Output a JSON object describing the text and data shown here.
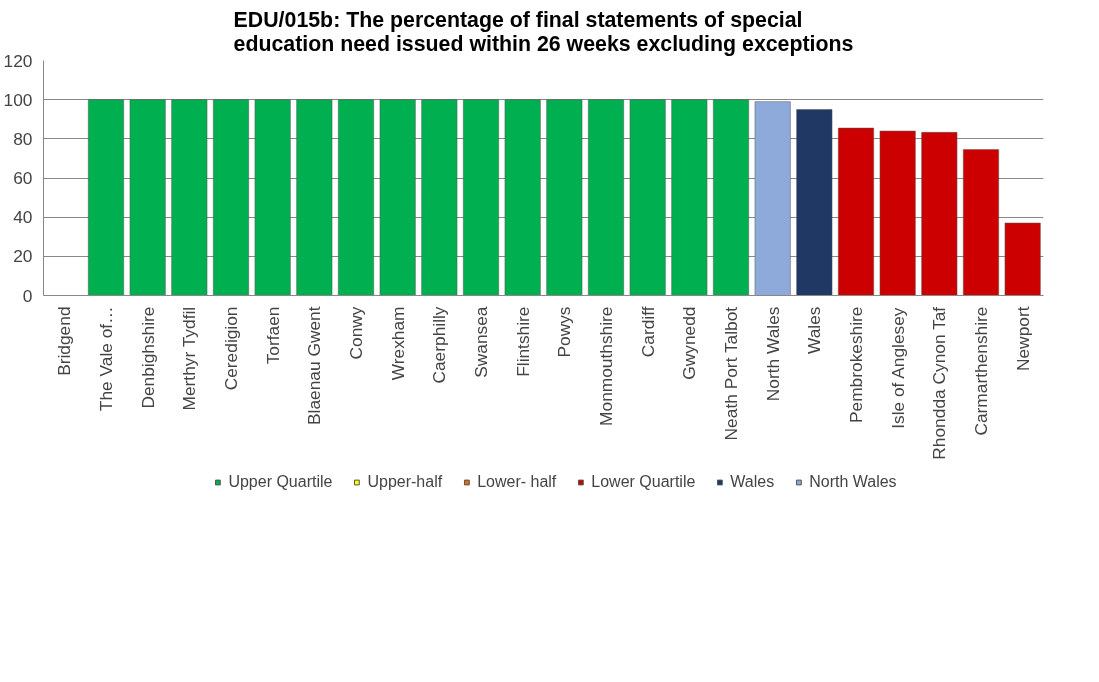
{
  "chart_data": {
    "type": "bar",
    "title": "EDU/015b: The percentage of final statements of special\neducation need issued within 26 weeks excluding exceptions",
    "categories": [
      "Bridgend",
      "The Vale of…",
      "Denbighshire",
      "Merthyr Tydfil",
      "Ceredigion",
      "Torfaen",
      "Blaenau Gwent",
      "Conwy",
      "Wrexham",
      "Caerphilly",
      "Swansea",
      "Flintshire",
      "Powys",
      "Monmouthshire",
      "Cardiff",
      "Gwynedd",
      "Neath Port Talbot",
      "North Wales",
      "Wales",
      "Pembrokeshire",
      "Isle of Anglesey",
      "Rhondda Cynon Taf",
      "Carmarthenshire",
      "Newport"
    ],
    "series": [
      {
        "name": "Upper Quartile",
        "color": "#00b050",
        "values": [
          null,
          100,
          100,
          100,
          100,
          100,
          100,
          100,
          100,
          100,
          100,
          100,
          100,
          100,
          100,
          100,
          100,
          null,
          null,
          null,
          null,
          null,
          null,
          null
        ]
      },
      {
        "name": "Upper-half",
        "color": "#ffff00",
        "values": [
          null,
          null,
          null,
          null,
          null,
          null,
          null,
          null,
          null,
          null,
          null,
          null,
          null,
          null,
          null,
          null,
          null,
          null,
          null,
          null,
          null,
          null,
          null,
          null
        ]
      },
      {
        "name": "Lower- half",
        "color": "#e46c0a",
        "values": [
          null,
          null,
          null,
          null,
          null,
          null,
          null,
          null,
          null,
          null,
          null,
          null,
          null,
          null,
          null,
          null,
          null,
          null,
          null,
          null,
          null,
          null,
          null,
          null
        ]
      },
      {
        "name": "Lower Quartile",
        "color": "#cc0000",
        "values": [
          null,
          null,
          null,
          null,
          null,
          null,
          null,
          null,
          null,
          null,
          null,
          null,
          null,
          null,
          null,
          null,
          null,
          null,
          null,
          85.5,
          84,
          83.3,
          74.5,
          37
        ]
      },
      {
        "name": "Wales",
        "color": "#1f3864",
        "values": [
          null,
          null,
          null,
          null,
          null,
          null,
          null,
          null,
          null,
          null,
          null,
          null,
          null,
          null,
          null,
          null,
          null,
          null,
          95,
          null,
          null,
          null,
          null,
          null
        ]
      },
      {
        "name": "North Wales",
        "color": "#8eaadb",
        "values": [
          null,
          null,
          null,
          null,
          null,
          null,
          null,
          null,
          null,
          null,
          null,
          null,
          null,
          null,
          null,
          null,
          null,
          99,
          null,
          null,
          null,
          null,
          null,
          null
        ]
      }
    ],
    "ylim": [
      0,
      120
    ],
    "yticks": [
      0,
      20,
      40,
      60,
      80,
      100,
      120
    ],
    "grid": "y",
    "legend": "bottom"
  }
}
